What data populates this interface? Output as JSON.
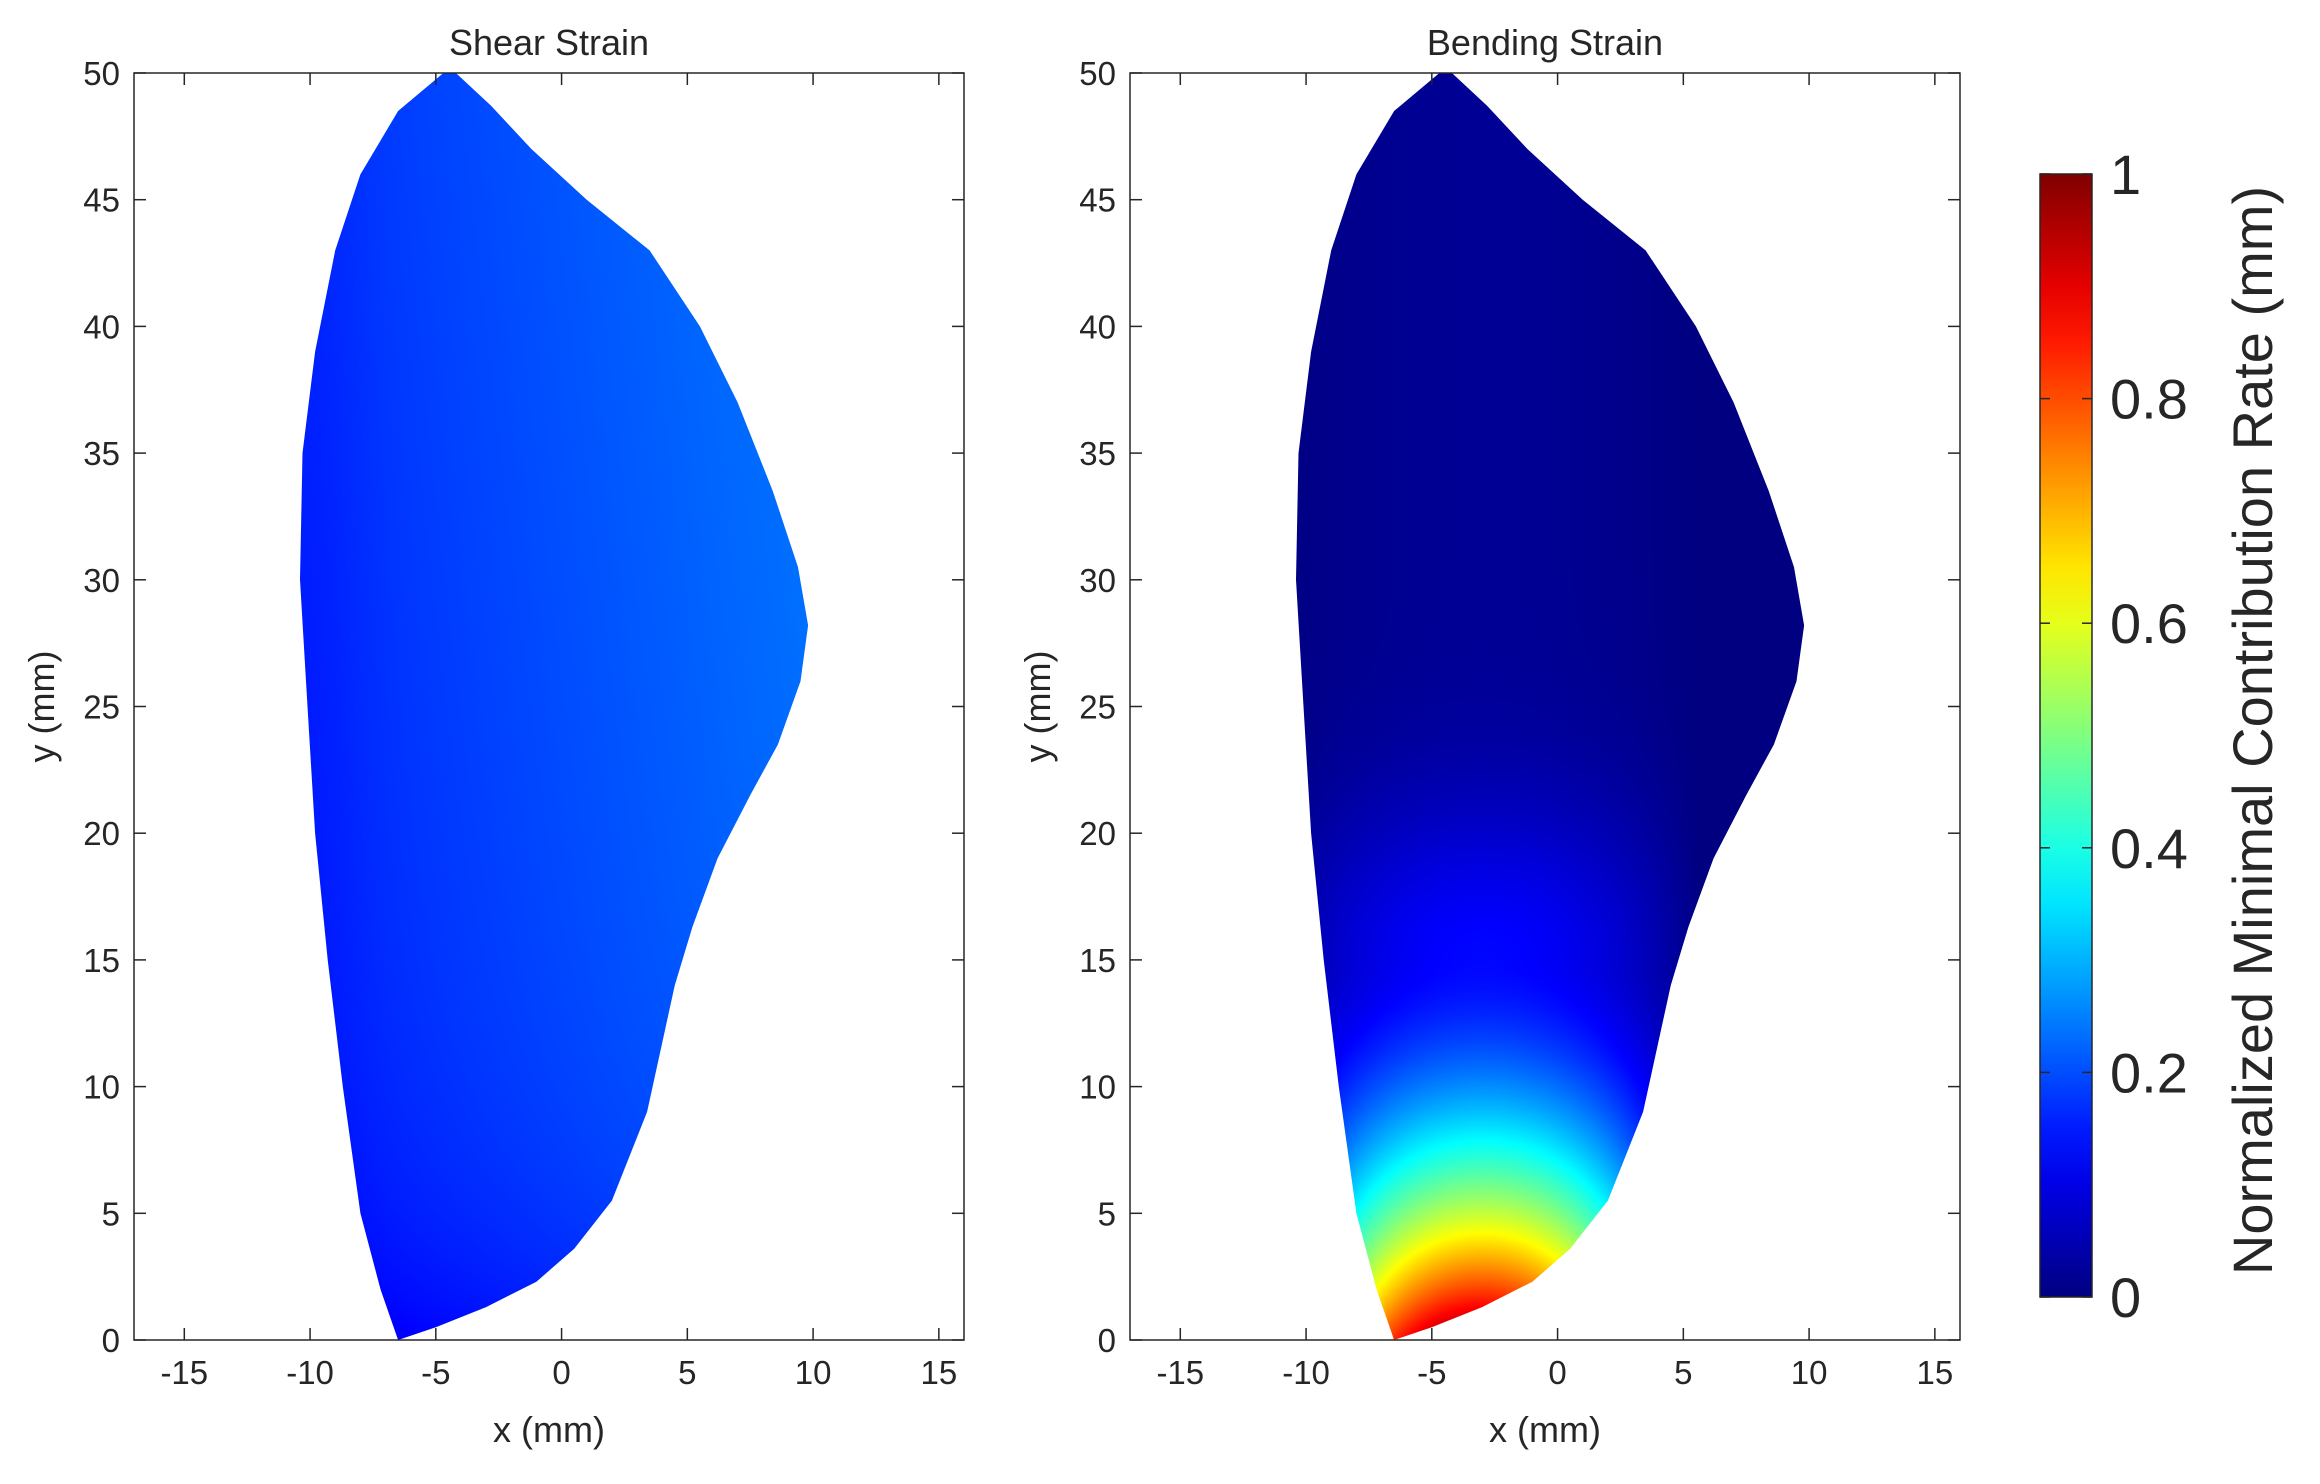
{
  "chart_data": [
    {
      "type": "heatmap",
      "title": "Shear Strain",
      "xlabel": "x (mm)",
      "ylabel": "y (mm)",
      "xlim": [
        -17,
        16
      ],
      "ylim": [
        0,
        50
      ],
      "xticks": [
        -15,
        -10,
        -5,
        0,
        5,
        10,
        15
      ],
      "yticks": [
        0,
        5,
        10,
        15,
        20,
        25,
        30,
        35,
        40,
        45,
        50
      ],
      "grid": false,
      "field": "shear",
      "value_range": [
        0.12,
        0.26
      ],
      "outline": [
        [
          -4.7,
          50
        ],
        [
          -6.5,
          48.5
        ],
        [
          -8,
          46
        ],
        [
          -9,
          43
        ],
        [
          -9.8,
          39
        ],
        [
          -10.3,
          35
        ],
        [
          -10.4,
          30
        ],
        [
          -10.1,
          25
        ],
        [
          -9.8,
          20
        ],
        [
          -9.3,
          15
        ],
        [
          -8.7,
          10
        ],
        [
          -8,
          5
        ],
        [
          -7.2,
          2
        ],
        [
          -6.5,
          0
        ],
        [
          -5,
          0.5
        ],
        [
          -3,
          1.3
        ],
        [
          -1,
          2.3
        ],
        [
          0.5,
          3.6
        ],
        [
          2,
          5.5
        ],
        [
          3.4,
          9
        ],
        [
          4.5,
          14
        ],
        [
          5.2,
          16.3
        ],
        [
          6.2,
          19
        ],
        [
          7.5,
          21.5
        ],
        [
          8.6,
          23.5
        ],
        [
          9.5,
          26
        ],
        [
          9.8,
          28.2
        ],
        [
          9.4,
          30.5
        ],
        [
          8.4,
          33.5
        ],
        [
          7,
          37
        ],
        [
          5.5,
          40
        ],
        [
          3.5,
          43
        ],
        [
          1,
          45
        ],
        [
          -1.2,
          47
        ],
        [
          -2.8,
          48.7
        ],
        [
          -4.2,
          50
        ]
      ]
    },
    {
      "type": "heatmap",
      "title": "Bending Strain",
      "xlabel": "x (mm)",
      "ylabel": "y (mm)",
      "xlim": [
        -17,
        16
      ],
      "ylim": [
        0,
        50
      ],
      "xticks": [
        -15,
        -10,
        -5,
        0,
        5,
        10,
        15
      ],
      "yticks": [
        0,
        5,
        10,
        15,
        20,
        25,
        30,
        35,
        40,
        45,
        50
      ],
      "grid": false,
      "field": "bending",
      "value_range": [
        0,
        1
      ],
      "outline": [
        [
          -4.7,
          50
        ],
        [
          -6.5,
          48.5
        ],
        [
          -8,
          46
        ],
        [
          -9,
          43
        ],
        [
          -9.8,
          39
        ],
        [
          -10.3,
          35
        ],
        [
          -10.4,
          30
        ],
        [
          -10.1,
          25
        ],
        [
          -9.8,
          20
        ],
        [
          -9.3,
          15
        ],
        [
          -8.7,
          10
        ],
        [
          -8,
          5
        ],
        [
          -7.2,
          2
        ],
        [
          -6.5,
          0
        ],
        [
          -5,
          0.5
        ],
        [
          -3,
          1.3
        ],
        [
          -1,
          2.3
        ],
        [
          0.5,
          3.6
        ],
        [
          2,
          5.5
        ],
        [
          3.4,
          9
        ],
        [
          4.5,
          14
        ],
        [
          5.2,
          16.3
        ],
        [
          6.2,
          19
        ],
        [
          7.5,
          21.5
        ],
        [
          8.6,
          23.5
        ],
        [
          9.5,
          26
        ],
        [
          9.8,
          28.2
        ],
        [
          9.4,
          30.5
        ],
        [
          8.4,
          33.5
        ],
        [
          7,
          37
        ],
        [
          5.5,
          40
        ],
        [
          3.5,
          43
        ],
        [
          1,
          45
        ],
        [
          -1.2,
          47
        ],
        [
          -2.8,
          48.7
        ],
        [
          -4.2,
          50
        ]
      ]
    }
  ],
  "colorbar": {
    "label": "Normalized Minimal Contribution Rate (mm)",
    "colormap": "jet",
    "range": [
      0,
      1
    ],
    "ticks": [
      "0",
      "0.2",
      "0.4",
      "0.6",
      "0.8",
      "1"
    ],
    "tick_values": [
      0,
      0.2,
      0.4,
      0.6,
      0.8,
      1
    ]
  }
}
